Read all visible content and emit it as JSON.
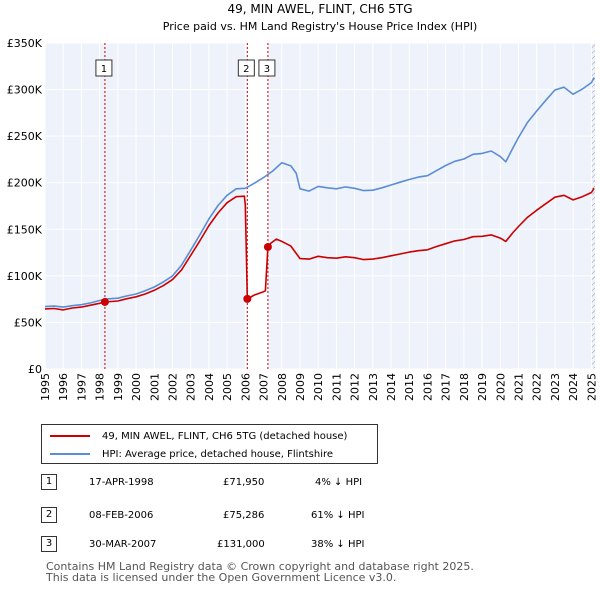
{
  "chart_data": {
    "type": "line",
    "title": "49, MIN AWEL, FLINT, CH6 5TG",
    "subtitle": "Price paid vs. HM Land Registry's House Price Index (HPI)",
    "xlim": [
      1995.0,
      2025.2
    ],
    "ylim": [
      0,
      350000
    ],
    "x_ticks": [
      1995,
      1996,
      1997,
      1998,
      1999,
      2000,
      2001,
      2002,
      2003,
      2004,
      2005,
      2006,
      2007,
      2008,
      2009,
      2010,
      2011,
      2012,
      2013,
      2014,
      2015,
      2016,
      2017,
      2018,
      2019,
      2020,
      2021,
      2022,
      2023,
      2024,
      2025
    ],
    "x_tick_labels": [
      "1995",
      "1996",
      "1997",
      "1998",
      "1999",
      "2000",
      "2001",
      "2002",
      "2003",
      "2004",
      "2005",
      "2006",
      "2007",
      "2008",
      "2009",
      "2010",
      "2011",
      "2012",
      "2013",
      "2014",
      "2015",
      "2016",
      "2017",
      "2018",
      "2019",
      "2020",
      "2021",
      "2022",
      "2023",
      "2024",
      "2025"
    ],
    "y_ticks": [
      0,
      50000,
      100000,
      150000,
      200000,
      250000,
      300000,
      350000
    ],
    "y_tick_labels": [
      "£0",
      "£50K",
      "£100K",
      "£150K",
      "£200K",
      "£250K",
      "£300K",
      "£350K"
    ],
    "series": [
      {
        "name": "49, MIN AWEL, FLINT, CH6 5TG (detached house)",
        "color": "#cc0000",
        "points": [
          [
            1995.0,
            64500
          ],
          [
            1995.5,
            65000
          ],
          [
            1996.0,
            63500
          ],
          [
            1996.5,
            65500
          ],
          [
            1997.0,
            66500
          ],
          [
            1997.5,
            68500
          ],
          [
            1998.0,
            70500
          ],
          [
            1998.29,
            71950
          ],
          [
            1999.0,
            73000
          ],
          [
            1999.5,
            75500
          ],
          [
            2000.0,
            77500
          ],
          [
            2000.5,
            80500
          ],
          [
            2001.0,
            84500
          ],
          [
            2001.5,
            89500
          ],
          [
            2002.0,
            96000
          ],
          [
            2002.5,
            106500
          ],
          [
            2003.0,
            122000
          ],
          [
            2003.5,
            137500
          ],
          [
            2004.0,
            154000
          ],
          [
            2004.5,
            167500
          ],
          [
            2005.0,
            178500
          ],
          [
            2005.5,
            185000
          ],
          [
            2005.95,
            185500
          ],
          [
            2006.0,
            176000
          ],
          [
            2006.11,
            75286
          ],
          [
            2006.5,
            79500
          ],
          [
            2007.0,
            83000
          ],
          [
            2007.1,
            84000
          ],
          [
            2007.24,
            131000
          ],
          [
            2007.4,
            135000
          ],
          [
            2007.7,
            139500
          ],
          [
            2008.0,
            137000
          ],
          [
            2008.5,
            132000
          ],
          [
            2008.8,
            124000
          ],
          [
            2009.0,
            118500
          ],
          [
            2009.5,
            118000
          ],
          [
            2010.0,
            121000
          ],
          [
            2010.5,
            119500
          ],
          [
            2011.0,
            119000
          ],
          [
            2011.5,
            120500
          ],
          [
            2012.0,
            119500
          ],
          [
            2012.5,
            117500
          ],
          [
            2013.0,
            118000
          ],
          [
            2013.5,
            119500
          ],
          [
            2014.0,
            121500
          ],
          [
            2014.5,
            123500
          ],
          [
            2015.0,
            125500
          ],
          [
            2015.5,
            127000
          ],
          [
            2016.0,
            128000
          ],
          [
            2016.5,
            131500
          ],
          [
            2017.0,
            134500
          ],
          [
            2017.5,
            137500
          ],
          [
            2018.0,
            139000
          ],
          [
            2018.5,
            142000
          ],
          [
            2019.0,
            142500
          ],
          [
            2019.5,
            144000
          ],
          [
            2020.0,
            140500
          ],
          [
            2020.3,
            137000
          ],
          [
            2020.7,
            146500
          ],
          [
            2021.0,
            153000
          ],
          [
            2021.5,
            163000
          ],
          [
            2022.0,
            170500
          ],
          [
            2022.5,
            177500
          ],
          [
            2023.0,
            184500
          ],
          [
            2023.5,
            186500
          ],
          [
            2024.0,
            181500
          ],
          [
            2024.5,
            185000
          ],
          [
            2025.0,
            189500
          ],
          [
            2025.15,
            194000
          ]
        ]
      },
      {
        "name": "HPI: Average price, detached house, Flintshire",
        "color": "#5b8dd6",
        "points": [
          [
            1995.0,
            67000
          ],
          [
            1995.5,
            67500
          ],
          [
            1996.0,
            66500
          ],
          [
            1996.5,
            68000
          ],
          [
            1997.0,
            69000
          ],
          [
            1997.5,
            71000
          ],
          [
            1998.0,
            73500
          ],
          [
            1998.3,
            75000
          ],
          [
            1999.0,
            76000
          ],
          [
            1999.5,
            78500
          ],
          [
            2000.0,
            80500
          ],
          [
            2000.5,
            84000
          ],
          [
            2001.0,
            88000
          ],
          [
            2001.5,
            93500
          ],
          [
            2002.0,
            100000
          ],
          [
            2002.5,
            111500
          ],
          [
            2003.0,
            127500
          ],
          [
            2003.5,
            144000
          ],
          [
            2004.0,
            161000
          ],
          [
            2004.5,
            175500
          ],
          [
            2005.0,
            186500
          ],
          [
            2005.5,
            193500
          ],
          [
            2006.0,
            194000
          ],
          [
            2006.5,
            199500
          ],
          [
            2007.0,
            205500
          ],
          [
            2007.5,
            212500
          ],
          [
            2008.0,
            221500
          ],
          [
            2008.5,
            218000
          ],
          [
            2008.8,
            210000
          ],
          [
            2009.0,
            193500
          ],
          [
            2009.5,
            191000
          ],
          [
            2010.0,
            196000
          ],
          [
            2010.5,
            194500
          ],
          [
            2011.0,
            193500
          ],
          [
            2011.5,
            195500
          ],
          [
            2012.0,
            194000
          ],
          [
            2012.5,
            191500
          ],
          [
            2013.0,
            192000
          ],
          [
            2013.5,
            194500
          ],
          [
            2014.0,
            197500
          ],
          [
            2014.5,
            200500
          ],
          [
            2015.0,
            203500
          ],
          [
            2015.5,
            206000
          ],
          [
            2016.0,
            207500
          ],
          [
            2016.5,
            213000
          ],
          [
            2017.0,
            218500
          ],
          [
            2017.5,
            223000
          ],
          [
            2018.0,
            225500
          ],
          [
            2018.5,
            230500
          ],
          [
            2019.0,
            231500
          ],
          [
            2019.5,
            234000
          ],
          [
            2020.0,
            228000
          ],
          [
            2020.3,
            222500
          ],
          [
            2020.7,
            237500
          ],
          [
            2021.0,
            248500
          ],
          [
            2021.5,
            265000
          ],
          [
            2022.0,
            277000
          ],
          [
            2022.5,
            288500
          ],
          [
            2023.0,
            299500
          ],
          [
            2023.5,
            302500
          ],
          [
            2024.0,
            295000
          ],
          [
            2024.5,
            300500
          ],
          [
            2025.0,
            307500
          ],
          [
            2025.15,
            313000
          ]
        ]
      }
    ],
    "sales": [
      {
        "label": "1",
        "x": 1998.29,
        "price": 71950
      },
      {
        "label": "2",
        "x": 2006.11,
        "price": 75286
      },
      {
        "label": "3",
        "x": 2007.24,
        "price": 131000
      }
    ]
  },
  "colors": {
    "plot_background": "#eef2fa",
    "shade_band": "#ffffff",
    "grid": "#ffffff",
    "vline": "#cc0000",
    "hatch": "#999999"
  },
  "legend": {
    "items": [
      {
        "label": "49, MIN AWEL, FLINT, CH6 5TG (detached house)",
        "color": "#cc0000"
      },
      {
        "label": "HPI: Average price, detached house, Flintshire",
        "color": "#5b8dd6"
      }
    ]
  },
  "sales_table": [
    {
      "num": "1",
      "date": "17-APR-1998",
      "price": "£71,950",
      "pct": "4% ↓ HPI"
    },
    {
      "num": "2",
      "date": "08-FEB-2006",
      "price": "£75,286",
      "pct": "61% ↓ HPI"
    },
    {
      "num": "3",
      "date": "30-MAR-2007",
      "price": "£131,000",
      "pct": "38% ↓ HPI"
    }
  ],
  "footer": {
    "line1": "Contains HM Land Registry data © Crown copyright and database right 2025.",
    "line2": "This data is licensed under the Open Government Licence v3.0."
  }
}
